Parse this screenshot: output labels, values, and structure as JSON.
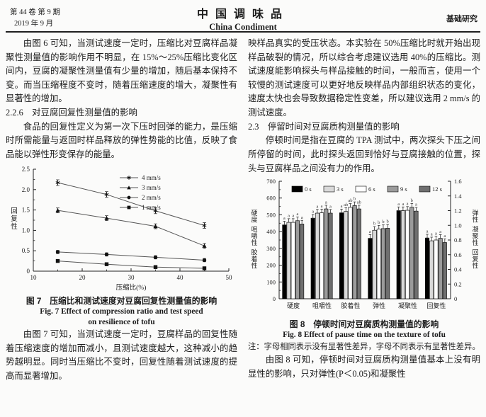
{
  "header": {
    "volume_issue": "第 44 卷 第 9 期",
    "date": "2019 年 9 月",
    "journal_cn": "中国调味品",
    "journal_en": "China Condiment",
    "section_tag": "基础研究"
  },
  "left_column": {
    "p1": "由图 6 可知，当测试速度一定时，压缩比对豆腐样品凝聚性测量值的影响作用不明显，在 15%～25%压缩比变化区间内，豆腐的凝聚性测量值有少量的增加，随后基本保持不变。而当压缩程度不变时，随着压缩速度的增大，凝聚性有显著性的增加。",
    "heading_226": "2.2.6　对豆腐回复性测量值的影响",
    "p2": "食品的回复性定义为第一次下压时回弹的能力，是压缩时所需能量与返回时样品释放的弹性势能的比值，反映了食品能以弹性形变保存的能量。",
    "fig7_caption_cn": "图 7　压缩比和测试速度对豆腐回复性测量值的影响",
    "fig7_caption_en1": "Fig. 7 Effect of compression ratio and test speed",
    "fig7_caption_en2": "on resilience of tofu",
    "p3": "由图 7 可知，当测试速度一定时，豆腐样品的回复性随着压缩速度的增加而减小，且测试速度越大，这种减小的趋势越明显。同时当压缩比不变时，回复性随着测试速度的提高而显著增加。"
  },
  "right_column": {
    "p1": "映样品真实的受压状态。本实验在 50%压缩比时就开始出现样品破裂的情况，所以综合考虑建议选用 40%的压缩比。测试速度能影响探头与样品接触的时间，一般而言，使用一个较慢的测试速度可以更好地反映样品内部组织状态的变化，速度太快也会导致数据稳定性变差，所以建议选用 2 mm/s 的测试速度。",
    "heading_23": "2.3　停留时间对豆腐质构测量值的影响",
    "p2": "停顿时间是指在豆腐的 TPA 测试中，两次探头下压之间所停留的时间，此时探头返回到恰好与豆腐接触的位置，探头与豆腐样品之间没有力的作用。",
    "fig8_caption_cn": "图 8　停顿时间对豆腐质构测量值的影响",
    "fig8_caption_en": "Fig. 8 Effect of pause time on the texture of tofu",
    "fig8_note": "注：字母相同表示没有显著性差异，字母不同表示有显著性差异。",
    "p3": "由图 8 可知，停顿时间对豆腐质构测量值基本上没有明显性的影响，只对弹性(P＜0.05)和凝聚性"
  },
  "chart_data": [
    {
      "type": "line",
      "title": "压缩比和测试速度对豆腐回复性测量值的影响",
      "xlabel": "压缩比(%)",
      "ylabel": "回复性",
      "xlim": [
        10,
        50
      ],
      "ylim": [
        0,
        2.5
      ],
      "xticks": [
        10,
        20,
        30,
        40,
        50
      ],
      "yticks": [
        0,
        0.5,
        1.0,
        1.5,
        2.0,
        2.5
      ],
      "x": [
        15,
        25,
        35,
        45
      ],
      "grid": "off",
      "legend_position": "upper right",
      "series": [
        {
          "name": "4 mm/s",
          "marker": "star",
          "values": [
            2.17,
            1.88,
            1.48,
            1.12
          ],
          "err": 0.07
        },
        {
          "name": "3 mm/s",
          "marker": "triangle",
          "values": [
            1.49,
            1.3,
            1.1,
            0.62
          ],
          "err": 0.06
        },
        {
          "name": "2 mm/s",
          "marker": "circle",
          "values": [
            0.47,
            0.41,
            0.34,
            0.27
          ],
          "err": 0.04
        },
        {
          "name": "1 mm/s",
          "marker": "square",
          "values": [
            0.25,
            0.17,
            0.1,
            0.07
          ],
          "err": 0.03
        }
      ]
    },
    {
      "type": "bar",
      "title": "停顿时间对豆腐质构测量值的影响",
      "categories": [
        "硬度",
        "咀嚼性",
        "胶着性",
        "弹性",
        "凝聚性",
        "回复性"
      ],
      "left_axis": {
        "label": "硬度 咀嚼性 胶着性",
        "min": 0,
        "max": 700,
        "step": 100
      },
      "right_axis": {
        "label": "弹性 凝聚性 回复性",
        "min": 0,
        "max": 1.6,
        "step": 0.2
      },
      "grid": "off",
      "legend_position": "upper inside",
      "series": [
        {
          "name": "0 s",
          "color": "#000000",
          "values": [
            440,
            480,
            512,
            360,
            525,
            362
          ]
        },
        {
          "name": "3 s",
          "color": "#d9d9d9",
          "values": [
            455,
            510,
            520,
            408,
            525,
            345
          ]
        },
        {
          "name": "6 s",
          "color": "#ffffff",
          "values": [
            455,
            512,
            545,
            415,
            527,
            350
          ]
        },
        {
          "name": "9 s",
          "color": "#9b9b9b",
          "values": [
            465,
            535,
            555,
            418,
            545,
            360
          ]
        },
        {
          "name": "12 s",
          "color": "#6f6f6f",
          "values": [
            445,
            510,
            535,
            420,
            522,
            335
          ]
        }
      ],
      "sig_letters": [
        [
          "a",
          "a",
          "a",
          "a",
          "a"
        ],
        [
          "a",
          "a",
          "a",
          "a",
          "a"
        ],
        [
          "a",
          "ab",
          "ab",
          "b",
          "ab"
        ],
        [
          "a",
          "b",
          "b",
          "b",
          "b"
        ],
        [
          "a",
          "a",
          "a",
          "b",
          "a"
        ],
        [
          "a",
          "a",
          "a",
          "a",
          "a"
        ]
      ],
      "error_bar": 22
    }
  ]
}
